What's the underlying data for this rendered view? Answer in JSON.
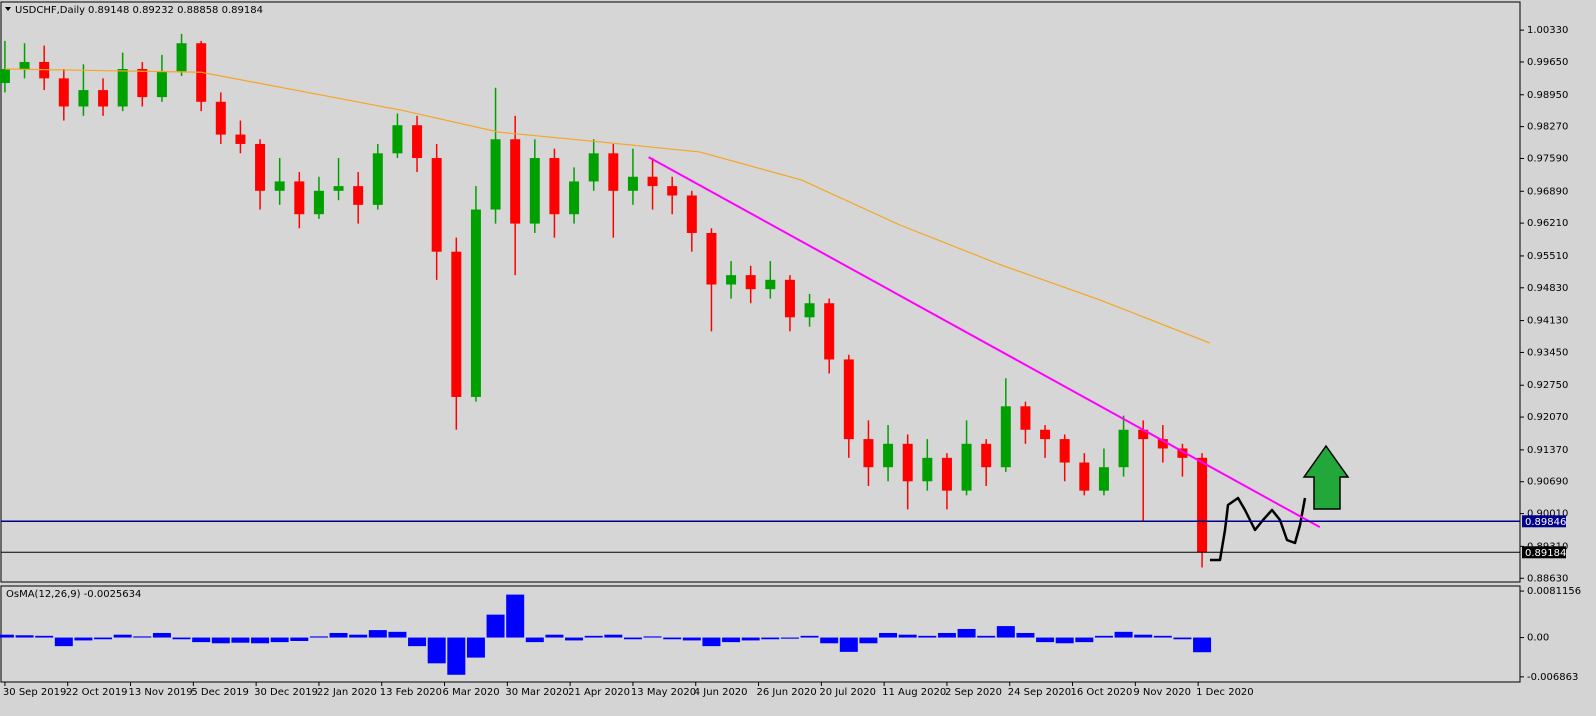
{
  "chart_data": [
    {
      "type": "candlestick",
      "title": "USDCHF,Daily",
      "info": "0.89148 0.89232 0.88858 0.89184",
      "xlim": [
        -1,
        386
      ],
      "ylim": [
        0.8855,
        1.0093
      ],
      "yticks": [
        {
          "value": 1.0033,
          "label": "1.00330"
        },
        {
          "value": 0.9965,
          "label": "0.99650"
        },
        {
          "value": 0.9895,
          "label": "0.98950"
        },
        {
          "value": 0.9827,
          "label": "0.98270"
        },
        {
          "value": 0.9759,
          "label": "0.97590"
        },
        {
          "value": 0.9689,
          "label": "0.96890"
        },
        {
          "value": 0.9621,
          "label": "0.96210"
        },
        {
          "value": 0.9551,
          "label": "0.95510"
        },
        {
          "value": 0.9483,
          "label": "0.94830"
        },
        {
          "value": 0.9413,
          "label": "0.94130"
        },
        {
          "value": 0.9345,
          "label": "0.93450"
        },
        {
          "value": 0.9275,
          "label": "0.92750"
        },
        {
          "value": 0.9207,
          "label": "0.92070"
        },
        {
          "value": 0.9137,
          "label": "0.91370"
        },
        {
          "value": 0.9069,
          "label": "0.90690"
        },
        {
          "value": 0.9001,
          "label": "0.90010"
        },
        {
          "value": 0.8931,
          "label": "0.89310"
        },
        {
          "value": 0.8863,
          "label": "0.88630"
        }
      ],
      "grid": false,
      "up_color": "#00a000",
      "down_color": "#ff0000",
      "x": [
        0,
        5,
        10,
        15,
        20,
        25,
        30,
        35,
        40,
        45,
        50,
        55,
        60,
        65,
        70,
        75,
        80,
        85,
        90,
        95,
        100,
        105,
        110,
        115,
        120,
        125,
        130,
        135,
        140,
        145,
        150,
        155,
        160,
        165,
        170,
        175,
        180,
        185,
        190,
        195,
        200,
        205,
        210,
        215,
        220,
        225,
        230,
        235,
        240,
        245,
        250,
        255,
        260,
        265,
        270,
        275,
        280,
        285,
        290,
        295,
        300,
        305
      ],
      "open": [
        0.992,
        0.995,
        0.9965,
        0.993,
        0.987,
        0.9905,
        0.987,
        0.995,
        0.989,
        0.9945,
        1.0005,
        0.988,
        0.981,
        0.979,
        0.969,
        0.971,
        0.964,
        0.969,
        0.97,
        0.966,
        0.977,
        0.983,
        0.976,
        0.956,
        0.925,
        0.965,
        0.98,
        0.962,
        0.976,
        0.964,
        0.971,
        0.977,
        0.969,
        0.972,
        0.97,
        0.968,
        0.96,
        0.949,
        0.951,
        0.948,
        0.95,
        0.942,
        0.945,
        0.933,
        0.916,
        0.91,
        0.915,
        0.907,
        0.912,
        0.905,
        0.915,
        0.91,
        0.923,
        0.918,
        0.916,
        0.911,
        0.905,
        0.91,
        0.918,
        0.916,
        0.914,
        0.912
      ],
      "high": [
        1.001,
        1.0005,
        1.0,
        0.995,
        0.996,
        0.993,
        0.9985,
        0.9965,
        0.998,
        1.0025,
        1.001,
        0.99,
        0.984,
        0.98,
        0.976,
        0.973,
        0.972,
        0.976,
        0.973,
        0.979,
        0.9855,
        0.985,
        0.979,
        0.959,
        0.97,
        0.991,
        0.985,
        0.98,
        0.978,
        0.974,
        0.98,
        0.979,
        0.978,
        0.976,
        0.972,
        0.969,
        0.961,
        0.954,
        0.953,
        0.954,
        0.951,
        0.947,
        0.946,
        0.934,
        0.92,
        0.919,
        0.917,
        0.916,
        0.913,
        0.92,
        0.916,
        0.929,
        0.924,
        0.919,
        0.917,
        0.913,
        0.914,
        0.921,
        0.92,
        0.919,
        0.915,
        0.913
      ],
      "low": [
        0.99,
        0.993,
        0.9905,
        0.984,
        0.985,
        0.985,
        0.986,
        0.987,
        0.988,
        0.9935,
        0.986,
        0.979,
        0.977,
        0.965,
        0.966,
        0.961,
        0.963,
        0.967,
        0.962,
        0.965,
        0.976,
        0.973,
        0.95,
        0.918,
        0.924,
        0.962,
        0.951,
        0.96,
        0.959,
        0.962,
        0.969,
        0.959,
        0.966,
        0.965,
        0.964,
        0.956,
        0.939,
        0.946,
        0.945,
        0.946,
        0.939,
        0.94,
        0.93,
        0.912,
        0.906,
        0.907,
        0.901,
        0.905,
        0.901,
        0.904,
        0.906,
        0.909,
        0.915,
        0.912,
        0.907,
        0.904,
        0.904,
        0.908,
        0.8985,
        0.911,
        0.908,
        0.8886
      ],
      "close": [
        0.995,
        0.9965,
        0.993,
        0.987,
        0.9905,
        0.987,
        0.995,
        0.989,
        0.9945,
        1.0005,
        0.988,
        0.981,
        0.979,
        0.969,
        0.971,
        0.964,
        0.969,
        0.97,
        0.966,
        0.977,
        0.983,
        0.976,
        0.956,
        0.925,
        0.965,
        0.98,
        0.962,
        0.976,
        0.964,
        0.971,
        0.977,
        0.969,
        0.972,
        0.97,
        0.968,
        0.96,
        0.949,
        0.951,
        0.948,
        0.95,
        0.942,
        0.945,
        0.933,
        0.916,
        0.91,
        0.915,
        0.907,
        0.912,
        0.905,
        0.915,
        0.91,
        0.923,
        0.918,
        0.916,
        0.911,
        0.905,
        0.91,
        0.918,
        0.916,
        0.914,
        0.912,
        0.89184
      ],
      "series": [
        {
          "color": "#f5a623",
          "x": [
            0,
            50,
            101,
            126,
            152,
            177,
            203,
            228,
            254,
            279,
            307
          ],
          "values": [
            0.995,
            0.9943,
            0.9862,
            0.9815,
            0.9794,
            0.9773,
            0.9713,
            0.9617,
            0.9531,
            0.9457,
            0.9365
          ]
        },
        {
          "color": "#ff00ff",
          "x": [
            164,
            335
          ],
          "values": [
            0.9762,
            0.8972
          ]
        }
      ],
      "hlines": [
        {
          "value": 0.89846,
          "color": "#00008b"
        },
        {
          "value": 0.89184,
          "color": "#000000"
        }
      ]
    },
    {
      "type": "bar",
      "title": "OsMA(12,26,9) -0.0025634",
      "color": "#0000ff",
      "xlim": [
        -1,
        386
      ],
      "ylim": [
        -0.00776,
        0.009
      ],
      "yticks": [
        0.0081156,
        {
          "value": 0,
          "label": "0.00"
        },
        -0.006863
      ],
      "xticks": [
        {
          "value": 0,
          "label": "30 Sep 2019"
        },
        {
          "value": 16,
          "label": "22 Oct 2019"
        },
        {
          "value": 32,
          "label": "13 Nov 2019"
        },
        {
          "value": 48,
          "label": "5 Dec 2019"
        },
        {
          "value": 64,
          "label": "30 Dec 2019"
        },
        {
          "value": 80,
          "label": "22 Jan 2020"
        },
        {
          "value": 96,
          "label": "13 Feb 2020"
        },
        {
          "value": 112,
          "label": "6 Mar 2020"
        },
        {
          "value": 128,
          "label": "30 Mar 2020"
        },
        {
          "value": 144,
          "label": "21 Apr 2020"
        },
        {
          "value": 160,
          "label": "13 May 2020"
        },
        {
          "value": 176,
          "label": "4 Jun 2020"
        },
        {
          "value": 192,
          "label": "26 Jun 2020"
        },
        {
          "value": 208,
          "label": "20 Jul 2020"
        },
        {
          "value": 224,
          "label": "11 Aug 2020"
        },
        {
          "value": 240,
          "label": "2 Sep 2020"
        },
        {
          "value": 256,
          "label": "24 Sep 2020"
        },
        {
          "value": 272,
          "label": "16 Oct 2020"
        },
        {
          "value": 288,
          "label": "9 Nov 2020"
        },
        {
          "value": 304,
          "label": "1 Dec 2020"
        }
      ],
      "x": [
        0,
        5,
        10,
        15,
        20,
        25,
        30,
        35,
        40,
        45,
        50,
        55,
        60,
        65,
        70,
        75,
        80,
        85,
        90,
        95,
        100,
        105,
        110,
        115,
        120,
        125,
        130,
        135,
        140,
        145,
        150,
        155,
        160,
        165,
        170,
        175,
        180,
        185,
        190,
        195,
        200,
        205,
        210,
        215,
        220,
        225,
        230,
        235,
        240,
        245,
        250,
        255,
        260,
        265,
        270,
        275,
        280,
        285,
        290,
        295,
        300,
        305
      ],
      "values": [
        0.0005,
        0.0004,
        0.0003,
        -0.0015,
        -0.0005,
        -0.0003,
        0.0005,
        0.0002,
        0.0008,
        -0.0003,
        -0.0008,
        -0.001,
        -0.0009,
        -0.001,
        -0.0008,
        -0.0006,
        0.0002,
        0.0008,
        0.0005,
        0.0013,
        0.001,
        -0.0015,
        -0.0045,
        -0.0065,
        -0.0035,
        0.004,
        0.0075,
        -0.0008,
        0.0005,
        -0.0005,
        0.0003,
        0.0005,
        -0.0003,
        0.0002,
        -0.0003,
        -0.0005,
        -0.0015,
        -0.0008,
        -0.0005,
        -0.0003,
        -0.0002,
        0.0003,
        -0.001,
        -0.0025,
        -0.001,
        0.0008,
        0.0005,
        0.0003,
        0.0008,
        0.0015,
        0.0003,
        0.002,
        0.0008,
        -0.0008,
        -0.001,
        -0.0008,
        0.0003,
        0.001,
        0.0005,
        0.0003,
        -0.0003,
        -0.0025634
      ]
    }
  ]
}
